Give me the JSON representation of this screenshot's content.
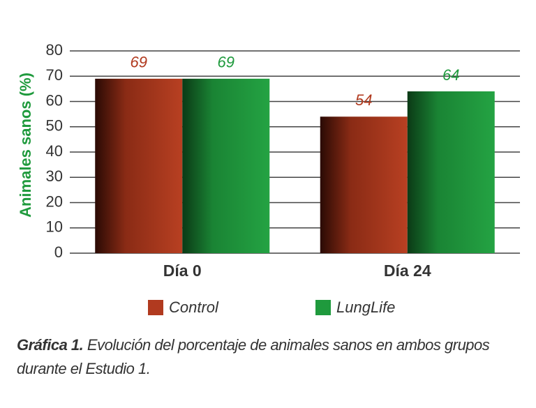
{
  "chart_data": {
    "type": "bar",
    "y_label": "Animales sanos (%)",
    "categories": [
      "Día 0",
      "Día 24"
    ],
    "series": [
      {
        "name": "Control",
        "color": "#b13a1f",
        "values": [
          69,
          54
        ]
      },
      {
        "name": "LungLife",
        "color": "#1f9a3d",
        "values": [
          69,
          64
        ]
      }
    ],
    "ylim": [
      0,
      80
    ],
    "yticks": [
      0,
      10,
      20,
      30,
      40,
      50,
      60,
      70,
      80
    ],
    "grid": true,
    "legend": "bottom"
  },
  "caption": {
    "label": "Gráfica 1.",
    "text": "Evolución del porcentaje de animales sanos en ambos grupos durante el Estudio 1."
  }
}
